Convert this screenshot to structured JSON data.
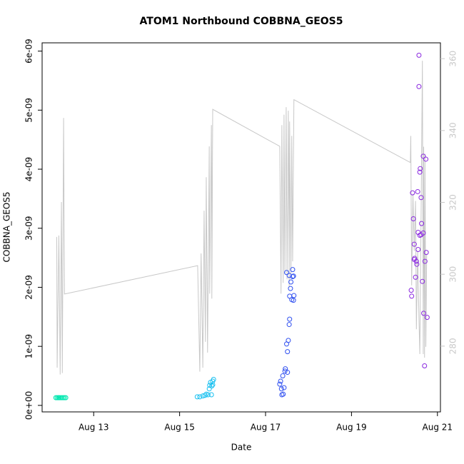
{
  "chart_data": {
    "type": "scatter",
    "title": "ATOM1 Northbound COBBNA_GEOS5",
    "x_label": "Date",
    "y_label": "COBBNA_GEOS5",
    "xlim": [
      11.8,
      21.07
    ],
    "xticks": [
      {
        "value": 13,
        "label": "Aug 13"
      },
      {
        "value": 15,
        "label": "Aug 15"
      },
      {
        "value": 17,
        "label": "Aug 17"
      },
      {
        "value": 19,
        "label": "Aug 19"
      },
      {
        "value": 21,
        "label": "Aug 21"
      }
    ],
    "ylim": [
      -1.1e-10,
      6.14e-09
    ],
    "yticks": [
      {
        "value": 0,
        "label": "0e+00"
      },
      {
        "value": 1e-09,
        "label": "1e-09"
      },
      {
        "value": 2e-09,
        "label": "2e-09"
      },
      {
        "value": 3e-09,
        "label": "3e-09"
      },
      {
        "value": 4e-09,
        "label": "4e-09"
      },
      {
        "value": 5e-09,
        "label": "5e-09"
      },
      {
        "value": 6e-09,
        "label": "6e-09"
      }
    ],
    "y2lim": [
      261.7,
      364.4
    ],
    "y2ticks": [
      280,
      300,
      320,
      340,
      360
    ],
    "y2_color": "#c8c8c8",
    "series": [
      {
        "type": "line",
        "axis": "y2",
        "color": "#c8c8c8",
        "x": [
          12.14,
          12.15,
          12.19,
          12.22,
          12.25,
          12.27,
          12.3,
          12.32,
          15.42,
          15.47,
          15.5,
          15.54,
          15.57,
          15.6,
          15.62,
          15.65,
          15.69,
          15.7,
          15.74,
          15.75,
          15.77,
          17.33,
          17.36,
          17.38,
          17.41,
          17.43,
          17.45,
          17.48,
          17.5,
          17.53,
          17.55,
          17.56,
          17.59,
          17.61,
          17.63,
          17.66,
          20.37,
          20.38,
          20.4,
          20.43,
          20.46,
          20.49,
          20.51,
          20.54,
          20.57,
          20.59,
          20.62,
          20.65,
          20.67,
          20.68,
          20.7,
          20.71,
          20.73,
          20.75
        ],
        "values": [
          310.4,
          274.0,
          310.8,
          272.1,
          320.1,
          272.5,
          343.5,
          294.5,
          302.4,
          272.9,
          305.8,
          274.0,
          317.7,
          281.2,
          327.0,
          278.2,
          335.6,
          294.6,
          341.5,
          293.2,
          345.9,
          335.6,
          294.6,
          341.5,
          297.6,
          344.4,
          300.0,
          346.5,
          298.6,
          345.5,
          296.6,
          342.5,
          299.6,
          338.5,
          303.6,
          348.6,
          331.1,
          338.5,
          296.9,
          322.4,
          306.5,
          320.4,
          284.7,
          306.5,
          287.7,
          277.8,
          316.4,
          359.4,
          277.8,
          335.5,
          276.8,
          333.5,
          279.8,
          305.7
        ]
      },
      {
        "type": "scatter",
        "color": "#00e8b0",
        "x": [
          12.12,
          12.15,
          12.18,
          12.2,
          12.23,
          12.26,
          12.29,
          12.32,
          12.35
        ],
        "values": [
          1.3e-10,
          1.3e-10,
          1.3e-10,
          1.3e-10,
          1.3e-10,
          1.3e-10,
          1.3e-10,
          1.3e-10,
          1.3e-10
        ]
      },
      {
        "type": "scatter",
        "color": "#18c0f0",
        "x": [
          15.41,
          15.47,
          15.54,
          15.59,
          15.62,
          15.66,
          15.69,
          15.7,
          15.72,
          15.75,
          15.77,
          15.79,
          15.74,
          15.77
        ],
        "values": [
          1.45e-10,
          1.45e-10,
          1.6e-10,
          1.7e-10,
          1.9e-10,
          1.8e-10,
          2.8e-10,
          3.4e-10,
          3.9e-10,
          3.3e-10,
          4.1e-10,
          4.4e-10,
          1.8e-10,
          3.5e-10
        ]
      },
      {
        "type": "scatter",
        "color": "#3050f0",
        "x": [
          17.33,
          17.35,
          17.37,
          17.38,
          17.4,
          17.41,
          17.43,
          17.45,
          17.46,
          17.49,
          17.51,
          17.51,
          17.53,
          17.55,
          17.56,
          17.49,
          17.55,
          17.56,
          17.58,
          17.59,
          17.61,
          17.63,
          17.63,
          17.65,
          17.65,
          17.66
        ],
        "values": [
          3.6e-10,
          4.1e-10,
          2.8e-10,
          1.8e-10,
          5e-10,
          1.9e-10,
          3e-10,
          5.8e-10,
          6.2e-10,
          1.04e-09,
          5.6e-10,
          9.1e-10,
          1.1e-09,
          1.37e-09,
          1.46e-09,
          2.25e-09,
          2.2e-09,
          1.85e-09,
          1.98e-09,
          2.09e-09,
          1.79e-09,
          2.3e-09,
          2.18e-09,
          2.19e-09,
          1.78e-09,
          1.86e-09
        ]
      },
      {
        "type": "scatter",
        "color": "#8a28e0",
        "x": [
          20.39,
          20.4,
          20.42,
          20.44,
          20.46,
          20.46,
          20.47,
          20.49,
          20.51,
          20.52,
          20.54,
          20.55,
          20.55,
          20.57,
          20.57,
          20.59,
          20.6,
          20.62,
          20.62,
          20.63,
          20.65,
          20.67,
          20.68,
          20.7,
          20.71,
          20.73,
          20.74,
          20.76,
          20.67,
          20.59
        ],
        "values": [
          1.95e-09,
          1.85e-09,
          3.6e-09,
          3.16e-09,
          2.47e-09,
          2.73e-09,
          2.49e-09,
          2.17e-09,
          2.44e-09,
          2.39e-09,
          3.62e-09,
          2.93e-09,
          2.64e-09,
          5.93e-09,
          5.4e-09,
          3.95e-09,
          4.01e-09,
          2.89e-09,
          3.52e-09,
          3.08e-09,
          2.1e-09,
          4.22e-09,
          1.56e-09,
          6.7e-10,
          2.44e-09,
          4.17e-09,
          2.59e-09,
          1.49e-09,
          2.92e-09,
          2.88e-09
        ]
      }
    ]
  }
}
